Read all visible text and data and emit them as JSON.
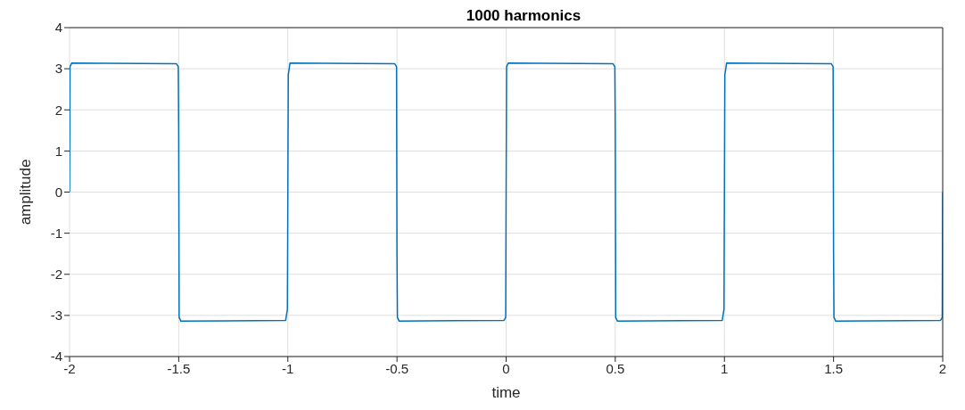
{
  "chart_data": {
    "type": "line",
    "title": "1000 harmonics",
    "xlabel": "time",
    "ylabel": "amplitude",
    "x": [
      -2,
      -1.998,
      -1.99,
      -1.51,
      -1.502,
      -1.5,
      -1.498,
      -1.49,
      -1.01,
      -1.002,
      -0.998,
      -0.99,
      -0.51,
      -0.502,
      -0.5,
      -0.498,
      -0.49,
      -0.01,
      -0.002,
      0,
      0.002,
      0.01,
      0.49,
      0.498,
      0.5,
      0.502,
      0.51,
      0.99,
      0.998,
      1.002,
      1.01,
      1.49,
      1.498,
      1.5,
      1.502,
      1.51,
      1.99,
      1.998,
      2
    ],
    "series": [
      {
        "color": "#0072bd",
        "values": [
          0,
          3.05,
          3.14,
          3.12,
          3.05,
          1.45,
          -3.05,
          -3.14,
          -3.12,
          -2.85,
          2.85,
          3.14,
          3.12,
          3.05,
          -1.45,
          -3.05,
          -3.14,
          -3.12,
          -3.05,
          0,
          3.05,
          3.14,
          3.12,
          3.05,
          1.45,
          -3.05,
          -3.14,
          -3.12,
          -2.85,
          2.85,
          3.14,
          3.12,
          3.05,
          -1.45,
          -3.05,
          -3.14,
          -3.12,
          -3.05,
          0
        ]
      }
    ],
    "xlim": [
      -2,
      2
    ],
    "xticks": [
      -2,
      -1.5,
      -1,
      -0.5,
      0,
      0.5,
      1,
      1.5,
      2
    ],
    "ylim": [
      -4,
      4
    ],
    "yticks": [
      -4,
      -3,
      -2,
      -1,
      0,
      1,
      2,
      3,
      4
    ],
    "grid": true,
    "legend": false,
    "marker": "none",
    "line_style": "solid"
  }
}
